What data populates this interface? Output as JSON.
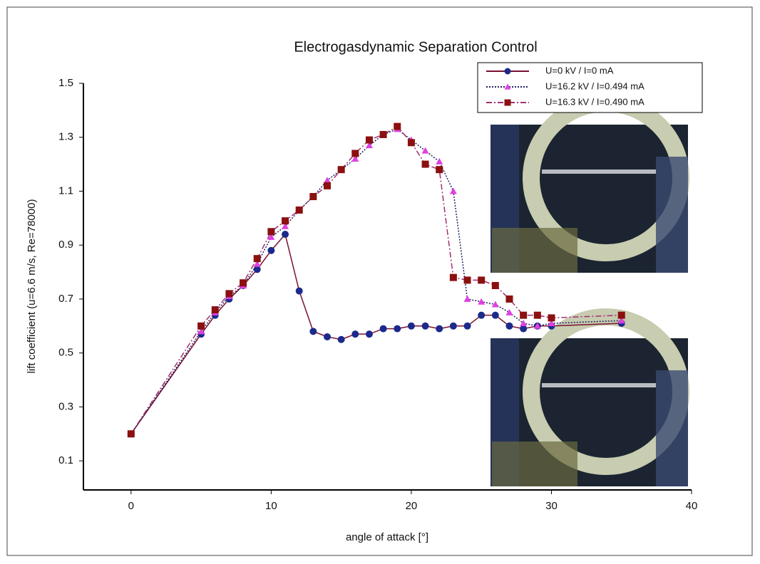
{
  "chart_data": {
    "type": "line",
    "title": "Electrogasdynamic Separation Control",
    "x_label": "angle of attack [°]",
    "y_label": "lift coefficient (u=6.6 m/s, Re=78000)",
    "x": [
      0,
      5,
      6,
      7,
      8,
      9,
      10,
      11,
      12,
      13,
      14,
      15,
      16,
      17,
      18,
      19,
      20,
      21,
      22,
      23,
      24,
      25,
      26,
      27,
      28,
      29,
      30,
      35
    ],
    "series": [
      {
        "name": "U=0 kV / I=0 mA",
        "color": "#1c2a8c",
        "line_color": "#7a1030",
        "marker": "circle",
        "dash": "solid",
        "values": [
          0.2,
          0.57,
          0.64,
          0.7,
          0.75,
          0.81,
          0.88,
          0.94,
          0.73,
          0.58,
          0.56,
          0.55,
          0.57,
          0.57,
          0.59,
          0.59,
          0.6,
          0.6,
          0.59,
          0.6,
          0.6,
          0.64,
          0.64,
          0.6,
          0.59,
          0.6,
          0.6,
          0.61
        ]
      },
      {
        "name": "U=16.2 kV / I=0.494 mA",
        "color": "#e040e0",
        "line_color": "#202060",
        "marker": "triangle",
        "dash": "dotted",
        "values": [
          0.2,
          0.58,
          0.65,
          0.71,
          0.75,
          0.83,
          0.93,
          0.97,
          1.03,
          1.08,
          1.14,
          1.18,
          1.22,
          1.27,
          1.31,
          1.33,
          1.29,
          1.25,
          1.21,
          1.1,
          0.7,
          0.69,
          0.68,
          0.65,
          0.61,
          0.6,
          0.61,
          0.62
        ]
      },
      {
        "name": "U=16.3 kV / I=0.490 mA",
        "color": "#8b1010",
        "line_color": "#a03070",
        "marker": "square",
        "dash": "dashdot",
        "values": [
          0.2,
          0.6,
          0.66,
          0.72,
          0.76,
          0.85,
          0.95,
          0.99,
          1.03,
          1.08,
          1.12,
          1.18,
          1.24,
          1.29,
          1.31,
          1.34,
          1.28,
          1.2,
          1.18,
          0.78,
          0.77,
          0.77,
          0.75,
          0.7,
          0.64,
          0.64,
          0.63,
          0.64
        ]
      }
    ],
    "xlim": [
      -3.4,
      40
    ],
    "ylim": [
      0,
      1.5
    ],
    "xticks": [
      0,
      10,
      20,
      30,
      40
    ],
    "yticks": [
      0.1,
      0.3,
      0.5,
      0.7,
      0.9,
      1.1,
      1.3,
      1.5
    ],
    "legend": "upper right"
  }
}
